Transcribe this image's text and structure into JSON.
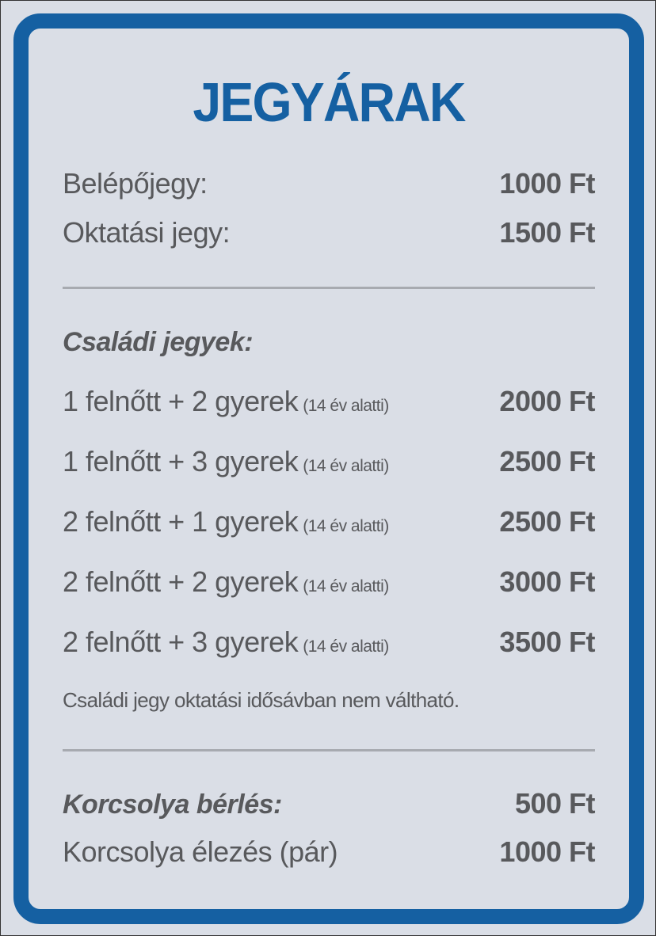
{
  "title": "JEGYÁRAK",
  "basic": [
    {
      "label": "Belépőjegy:",
      "price": "1000 Ft"
    },
    {
      "label": "Oktatási jegy:",
      "price": "1500 Ft"
    }
  ],
  "family": {
    "heading": "Családi jegyek:",
    "rows": [
      {
        "label": "1 felnőtt + 2 gyerek",
        "note": "(14 év alatti)",
        "price": "2000 Ft"
      },
      {
        "label": "1 felnőtt + 3 gyerek",
        "note": "(14 év alatti)",
        "price": "2500 Ft"
      },
      {
        "label": "2 felnőtt + 1 gyerek",
        "note": "(14 év alatti)",
        "price": "2500 Ft"
      },
      {
        "label": "2 felnőtt + 2 gyerek",
        "note": "(14 év alatti)",
        "price": "3000 Ft"
      },
      {
        "label": "2 felnőtt + 3 gyerek",
        "note": "(14 év alatti)",
        "price": "3500 Ft"
      }
    ],
    "footnote": "Családi jegy oktatási idősávban nem váltható."
  },
  "skates": [
    {
      "label": "Korcsolya bérlés:",
      "price": "500 Ft"
    },
    {
      "label": "Korcsolya élezés (pár)",
      "price": "1000 Ft"
    }
  ],
  "colors": {
    "accent": "#1560a2",
    "background": "#dadee6",
    "text": "#58595c"
  }
}
